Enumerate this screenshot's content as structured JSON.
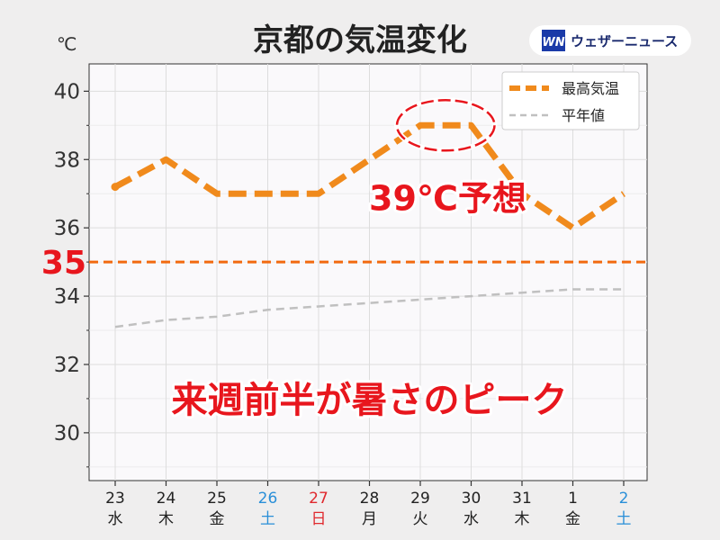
{
  "brand": {
    "name": "ウェザーニュース",
    "mark": "WN",
    "color": "#1a3aa8"
  },
  "chart_data": {
    "type": "line",
    "title": "京都の気温変化",
    "ylabel": "℃",
    "ylim": [
      28.6,
      40.8
    ],
    "yticks": [
      30,
      32,
      34,
      36,
      38,
      40
    ],
    "categories": [
      {
        "day": "23",
        "weekday": "水",
        "color": "#222222"
      },
      {
        "day": "24",
        "weekday": "木",
        "color": "#222222"
      },
      {
        "day": "25",
        "weekday": "金",
        "color": "#222222"
      },
      {
        "day": "26",
        "weekday": "土",
        "color": "#2a8fd8"
      },
      {
        "day": "27",
        "weekday": "日",
        "color": "#e0292e"
      },
      {
        "day": "28",
        "weekday": "月",
        "color": "#222222"
      },
      {
        "day": "29",
        "weekday": "火",
        "color": "#222222"
      },
      {
        "day": "30",
        "weekday": "水",
        "color": "#222222"
      },
      {
        "day": "31",
        "weekday": "木",
        "color": "#222222"
      },
      {
        "day": "1",
        "weekday": "金",
        "color": "#222222"
      },
      {
        "day": "2",
        "weekday": "土",
        "color": "#2a8fd8"
      }
    ],
    "series": [
      {
        "name": "最高気温",
        "color": "#f08a1c",
        "style": "dashed-thick",
        "values": [
          37.2,
          38.0,
          37.0,
          37.0,
          37.0,
          38.0,
          39.0,
          39.0,
          37.0,
          36.0,
          37.0
        ]
      },
      {
        "name": "平年値",
        "color": "#c0c0c0",
        "style": "dashed-thin",
        "values": [
          33.1,
          33.3,
          33.4,
          33.6,
          33.7,
          33.8,
          33.9,
          34.0,
          34.1,
          34.2,
          34.2
        ]
      }
    ],
    "threshold": {
      "value": 35,
      "label": "35",
      "color": "#f26a10"
    },
    "annotations": [
      {
        "text": "39℃予想",
        "x_index": 7,
        "y": 36.9
      },
      {
        "text": "来週前半が暑さのピーク",
        "x_index": 5,
        "y": 31.0
      }
    ],
    "highlight": {
      "from_index": 6,
      "to_index": 7,
      "value": 39.0,
      "color": "#e8161d"
    },
    "grid": true,
    "legend_position": "top-right"
  }
}
